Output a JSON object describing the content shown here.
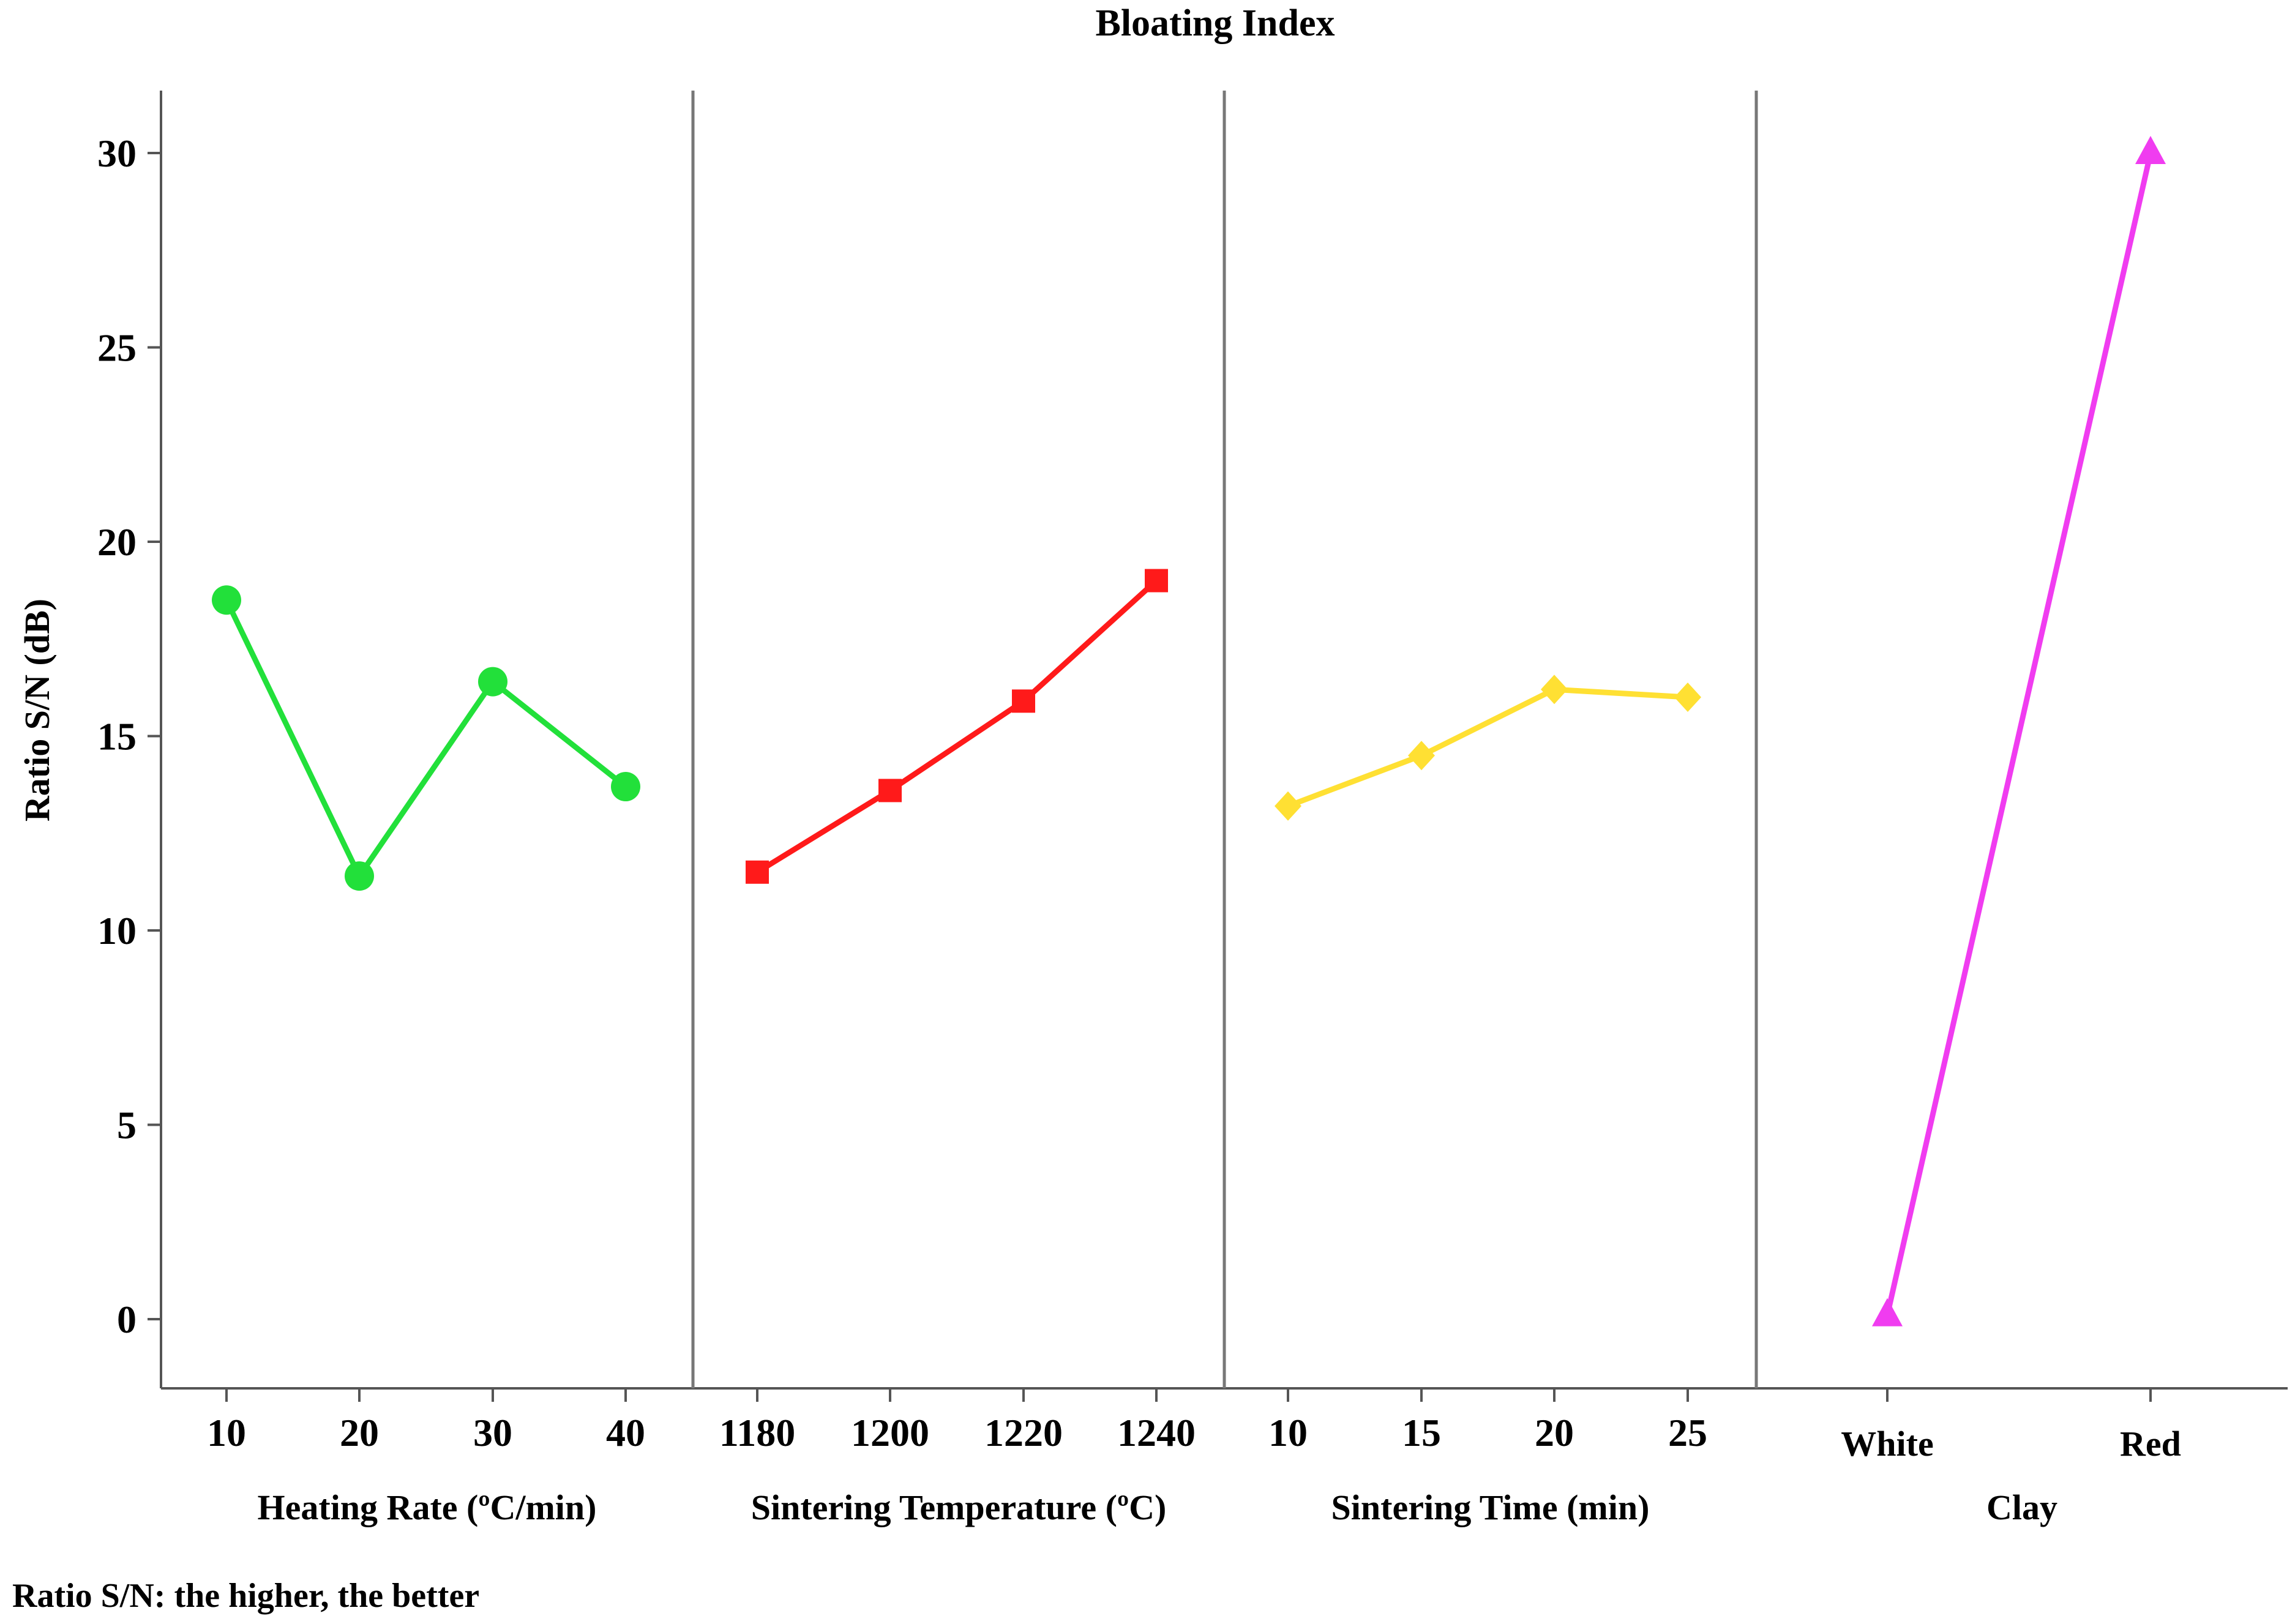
{
  "chart_data": {
    "type": "line",
    "title": "Bloating Index",
    "ylabel": "Ratio S/N (dB)",
    "ylim": [
      -1.8,
      31.5
    ],
    "yticks": [
      0,
      5,
      10,
      15,
      20,
      25,
      30
    ],
    "grid": false,
    "footnote": "Ratio S/N: the higher, the better",
    "panels": [
      {
        "xlabel": "Heating Rate (ºC/min)",
        "categories": [
          "10",
          "20",
          "30",
          "40"
        ],
        "values": [
          18.5,
          11.4,
          16.4,
          13.7
        ],
        "color": "#22e03a",
        "marker": "circle"
      },
      {
        "xlabel": "Sintering Temperature (ºC)",
        "categories": [
          "1180",
          "1200",
          "1220",
          "1240"
        ],
        "values": [
          11.5,
          13.6,
          15.9,
          19.0
        ],
        "color": "#ff1a1a",
        "marker": "square"
      },
      {
        "xlabel": "Sintering Time (min)",
        "categories": [
          "10",
          "15",
          "20",
          "25"
        ],
        "values": [
          13.2,
          14.5,
          16.2,
          16.0
        ],
        "color": "#ffe033",
        "marker": "diamond"
      },
      {
        "xlabel": "Clay",
        "categories": [
          "White",
          "Red"
        ],
        "values": [
          0.1,
          30.0
        ],
        "color": "#f03cf0",
        "marker": "triangle"
      }
    ]
  }
}
